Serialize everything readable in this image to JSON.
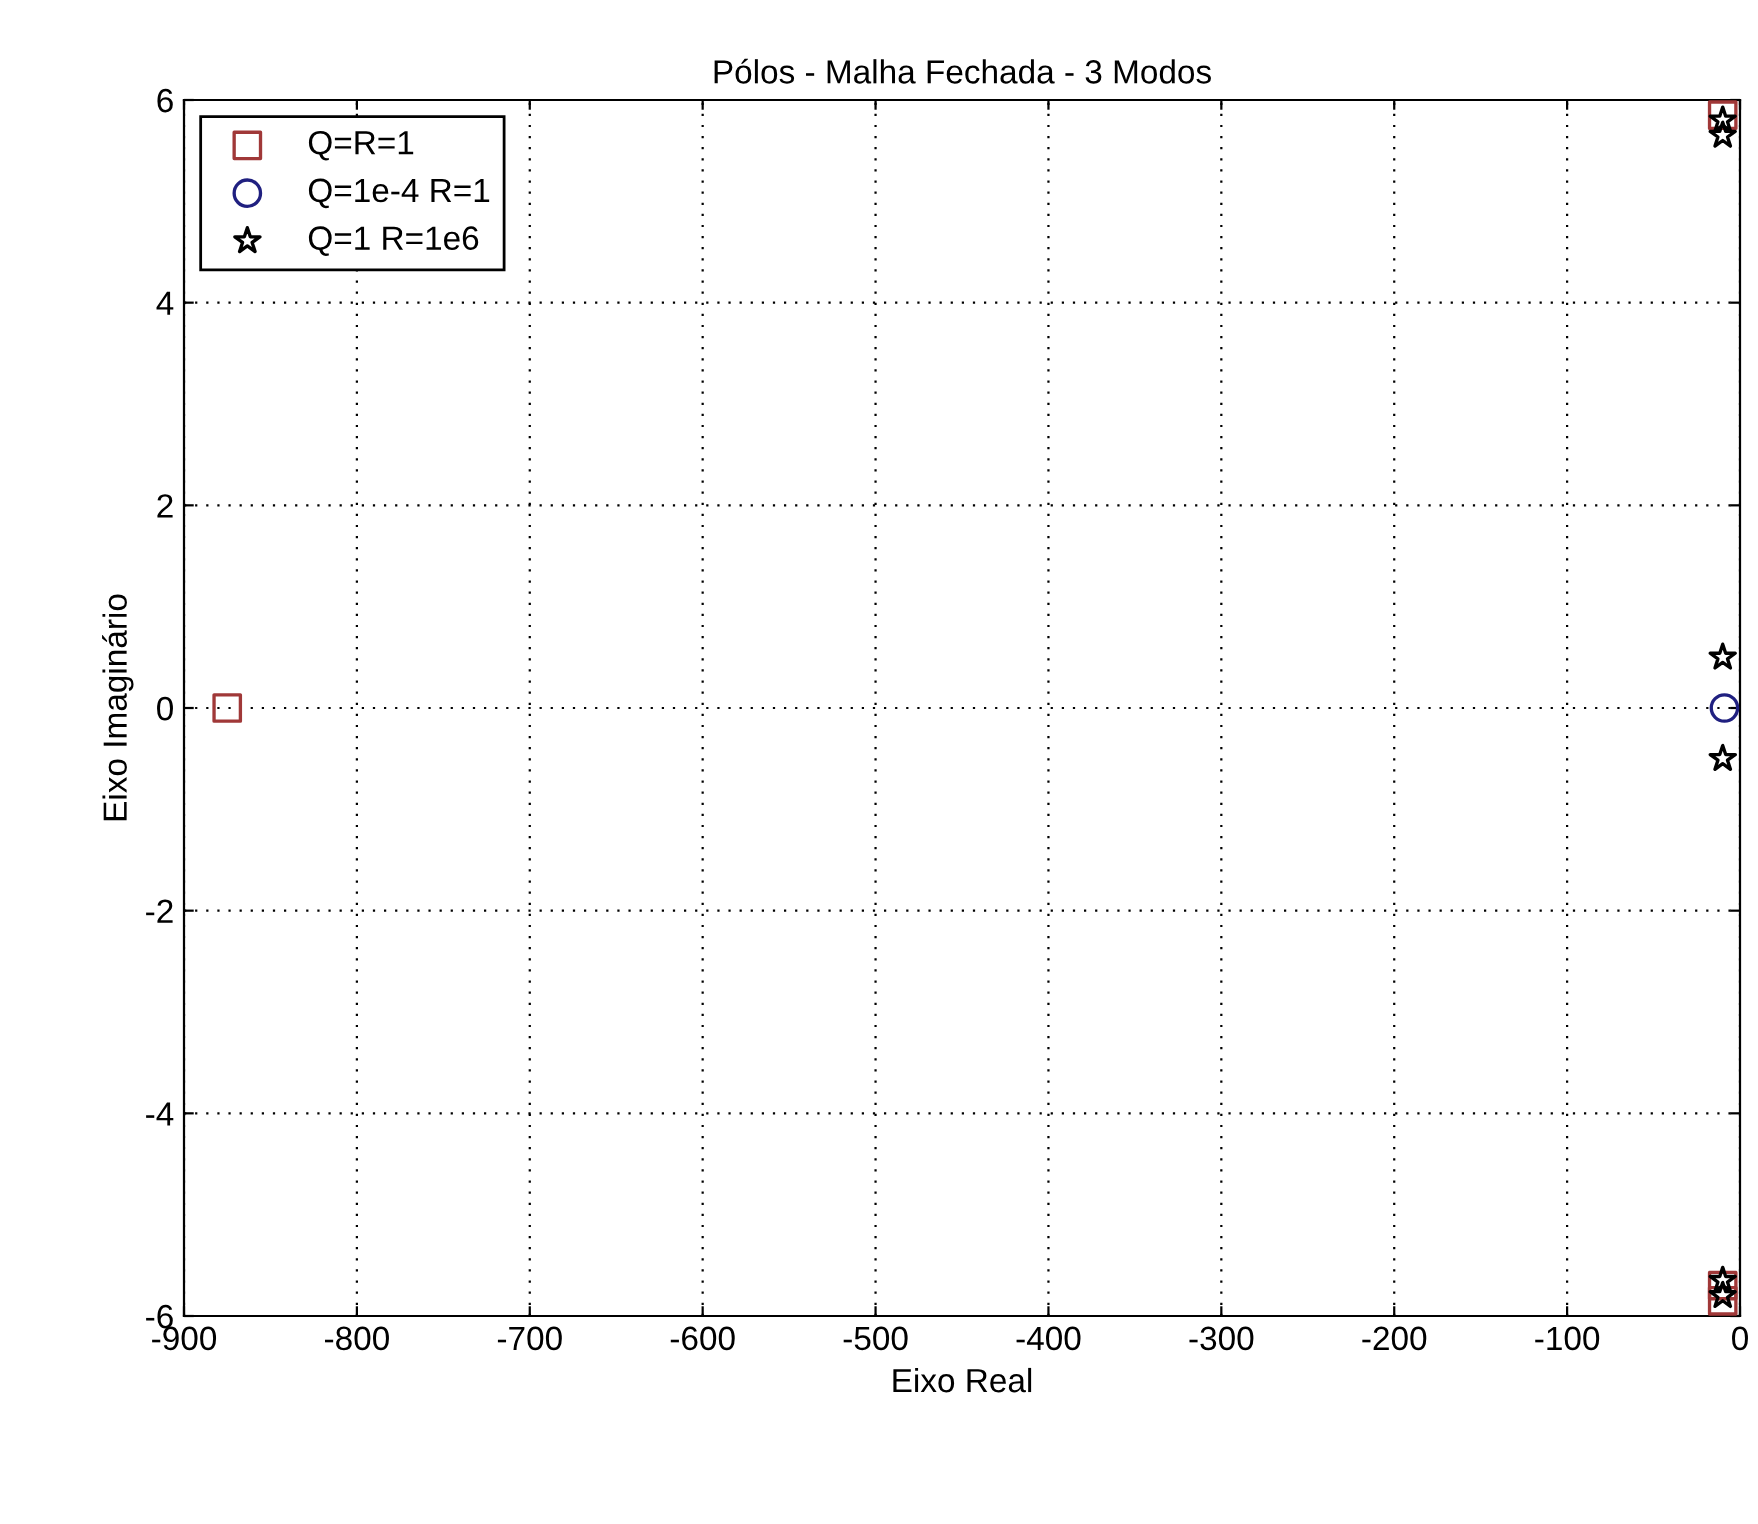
{
  "chart_data": {
    "type": "scatter",
    "title": "Pólos - Malha Fechada - 3 Modos",
    "xlabel": "Eixo Real",
    "ylabel": "Eixo Imaginário",
    "xlim": [
      -900,
      0
    ],
    "xticks": [
      -900,
      -800,
      -700,
      -600,
      -500,
      -400,
      -300,
      -200,
      -100,
      0
    ],
    "ylim": [
      -6,
      6
    ],
    "yticks": [
      -6,
      -4,
      -2,
      0,
      2,
      4,
      6
    ],
    "grid": true,
    "legend": "top left",
    "series": [
      {
        "name": "Q=R=1",
        "color": "#a03838",
        "marker": "square",
        "x": [
          -875,
          -10,
          -10,
          -10
        ],
        "values": [
          0,
          5.85,
          -5.85,
          -5.7
        ]
      },
      {
        "name": "Q=1e-4 R=1",
        "color": "#202080",
        "marker": "circle",
        "x": [
          -9
        ],
        "values": [
          0
        ]
      },
      {
        "name": "Q=1 R=1e6",
        "color": "#000000",
        "marker": "star",
        "x": [
          -10,
          -10,
          -10,
          -10,
          -10,
          -10
        ],
        "values": [
          0.5,
          -0.5,
          5.8,
          5.65,
          -5.8,
          -5.65
        ]
      }
    ]
  }
}
